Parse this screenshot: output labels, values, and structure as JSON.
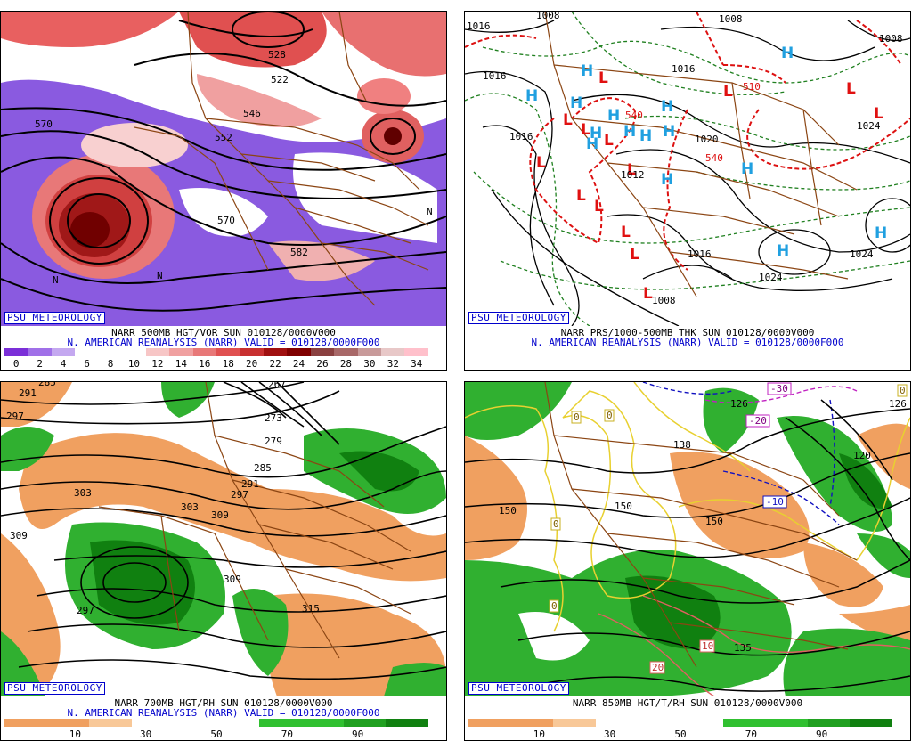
{
  "badge": "PSU METEOROLOGY",
  "panels": [
    {
      "caption1": "NARR 500MB HGT/VOR SUN 010128/0000V000",
      "caption2": "N. AMERICAN REANALYSIS (NARR) VALID = 010128/0000F000",
      "colorbar": [
        "#7b2fd8",
        "#a070e8",
        "#c4a8f0",
        "#ffffff",
        "#ffffff",
        "#ffffff",
        "#f7c6c6",
        "#f0a0a0",
        "#e87878",
        "#e05050",
        "#c83030",
        "#a01010",
        "#800000",
        "#8a4040",
        "#a86868",
        "#c89a9a",
        "#e8c8c8",
        "#ffc0cb"
      ],
      "ticks": [
        "0",
        "2",
        "4",
        "6",
        "8",
        "10",
        "12",
        "14",
        "16",
        "18",
        "20",
        "22",
        "24",
        "26",
        "28",
        "30",
        "32",
        "34"
      ],
      "contour_labels": [
        "570",
        "528",
        "546",
        "552",
        "522",
        "570",
        "582",
        "N",
        "N",
        "N"
      ]
    },
    {
      "caption1": "NARR PRS/1000-500MB THK SUN 010128/0000V000",
      "caption2": "N. AMERICAN REANALYSIS (NARR) VALID = 010128/0000F000",
      "isobars": [
        "1016",
        "1016",
        "1008",
        "1016",
        "1008",
        "1016",
        "1024",
        "1016",
        "1024",
        "1008",
        "1024",
        "1020",
        "1008",
        "1012"
      ],
      "thickness": [
        "510",
        "540",
        "540"
      ]
    },
    {
      "caption1": "NARR 700MB HGT/RH SUN 010128/0000V000",
      "caption2": "N. AMERICAN REANALYSIS (NARR) VALID = 010128/0000F000",
      "colorbar": [
        "#f0a060",
        "#f0a060",
        "#f8c898",
        "#ffffff",
        "#ffffff",
        "#ffffff",
        "#30c030",
        "#30c030",
        "#20a020",
        "#108010"
      ],
      "ticks": [
        "10",
        "30",
        "50",
        "70",
        "90"
      ],
      "contour_labels": [
        "291",
        "297",
        "285",
        "267",
        "273",
        "279",
        "285",
        "291",
        "297",
        "303",
        "303",
        "309",
        "309",
        "297",
        "309",
        "315"
      ]
    },
    {
      "caption1": "NARR 850MB HGT/T/RH SUN 010128/0000V000",
      "caption2": "",
      "colorbar": [
        "#f0a060",
        "#f0a060",
        "#f8c898",
        "#ffffff",
        "#ffffff",
        "#ffffff",
        "#30c030",
        "#30c030",
        "#20a020",
        "#108010"
      ],
      "ticks": [
        "10",
        "30",
        "50",
        "70",
        "90"
      ],
      "contour_labels": [
        "150",
        "150",
        "150",
        "126",
        "126",
        "120",
        "138",
        "-30",
        "-20",
        "-10",
        "0",
        "0",
        "0",
        "0",
        "10",
        "20",
        "0",
        "135"
      ]
    }
  ]
}
